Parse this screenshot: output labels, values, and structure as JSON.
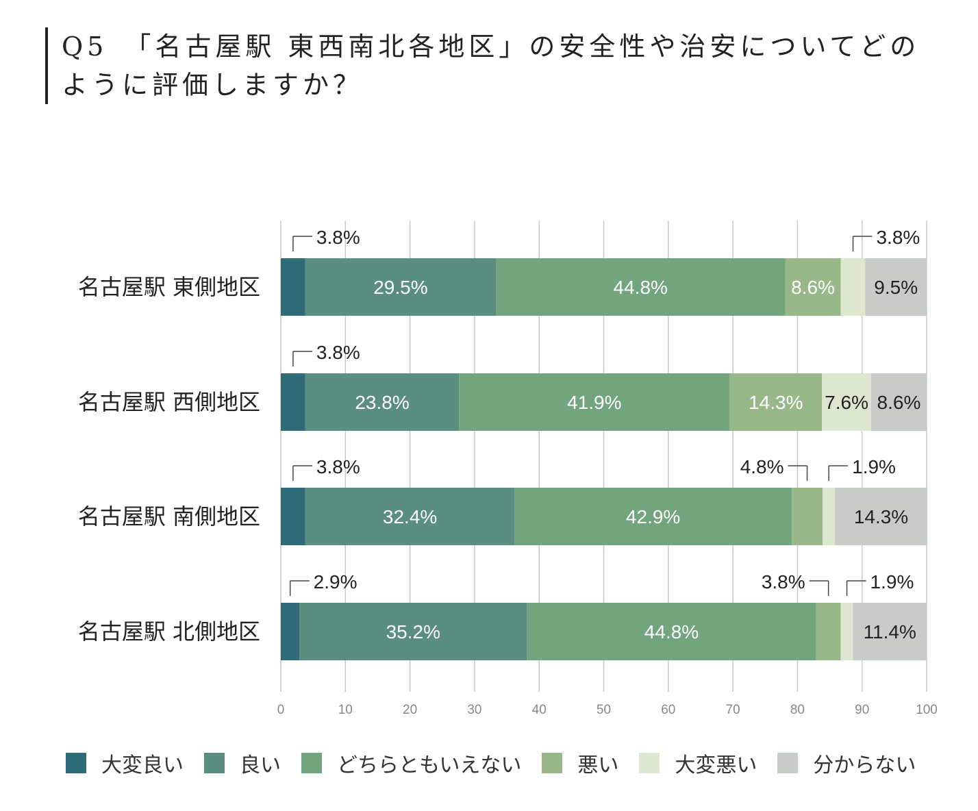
{
  "title": "Q5　「名古屋駅 東西南北各地区」の安全性や治安についてどのように評価しますか？",
  "colors": {
    "series": [
      "#2f6b79",
      "#5a8e80",
      "#72a47d",
      "#98b88a",
      "#dde6cf",
      "#c8ccc8"
    ],
    "grid": "#c8c8c8",
    "axis": "#888888"
  },
  "chart_data": {
    "type": "bar",
    "orientation": "horizontal",
    "stacked": true,
    "categories": [
      "名古屋駅 東側地区",
      "名古屋駅 西側地区",
      "名古屋駅 南側地区",
      "名古屋駅 北側地区"
    ],
    "series": [
      {
        "name": "大変良い",
        "values": [
          3.8,
          3.8,
          3.8,
          2.9
        ]
      },
      {
        "name": "良い",
        "values": [
          29.5,
          23.8,
          32.4,
          35.2
        ]
      },
      {
        "name": "どちらともいえない",
        "values": [
          44.8,
          41.9,
          42.9,
          44.8
        ]
      },
      {
        "name": "悪い",
        "values": [
          8.6,
          14.3,
          4.8,
          3.8
        ]
      },
      {
        "name": "大変悪い",
        "values": [
          3.8,
          7.6,
          1.9,
          1.9
        ]
      },
      {
        "name": "分からない",
        "values": [
          9.5,
          8.6,
          14.3,
          11.4
        ]
      }
    ],
    "data_labels": [
      [
        "3.8%",
        "29.5%",
        "44.8%",
        "8.6%",
        "3.8%",
        "9.5%"
      ],
      [
        "3.8%",
        "23.8%",
        "41.9%",
        "14.3%",
        "7.6%",
        "8.6%"
      ],
      [
        "3.8%",
        "32.4%",
        "42.9%",
        "4.8%",
        "1.9%",
        "14.3%"
      ],
      [
        "2.9%",
        "35.2%",
        "44.8%",
        "3.8%",
        "1.9%",
        "11.4%"
      ]
    ],
    "xlim": [
      0,
      100
    ],
    "xticks": [
      "0",
      "10",
      "20",
      "30",
      "40",
      "50",
      "60",
      "70",
      "80",
      "90",
      "100"
    ],
    "grid": true,
    "legend_position": "bottom"
  }
}
